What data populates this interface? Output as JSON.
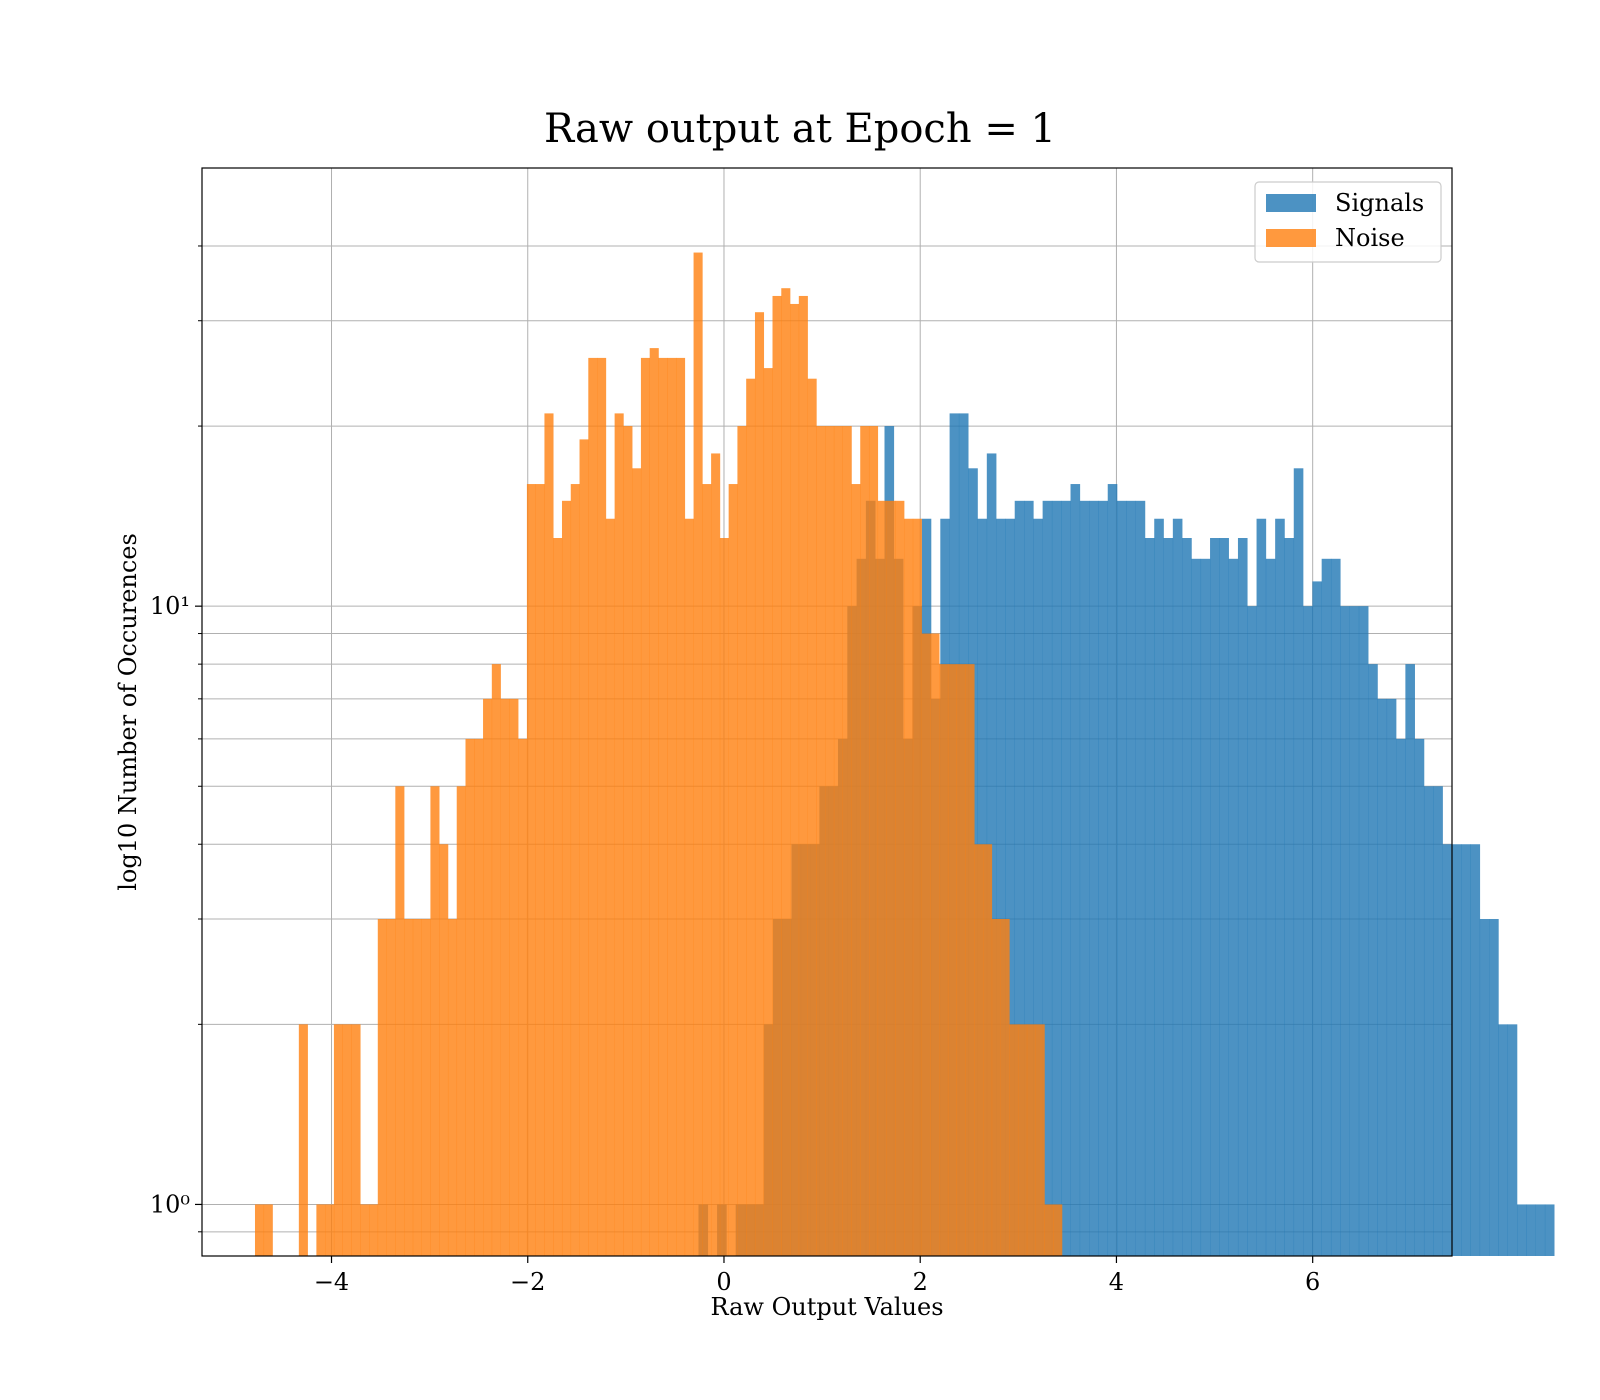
{
  "chart_data": {
    "type": "bar",
    "subtype": "histogram-overlay",
    "title": "Raw output at Epoch = 1",
    "xlabel": "Raw Output Values",
    "ylabel": "log10 Number of Occurences",
    "xlim": [
      -5.32,
      7.42
    ],
    "ylim": [
      0.82,
      54.0
    ],
    "yscale": "log",
    "grid": true,
    "legend_position": "top-right",
    "x_ticks": [
      {
        "value": -4,
        "label": "−4"
      },
      {
        "value": -2,
        "label": "−2"
      },
      {
        "value": 0,
        "label": "0"
      },
      {
        "value": 2,
        "label": "2"
      },
      {
        "value": 4,
        "label": "4"
      },
      {
        "value": 6,
        "label": "6"
      }
    ],
    "y_ticks": [
      {
        "value": 1,
        "label": "10⁰"
      },
      {
        "value": 10,
        "label": "10¹"
      }
    ],
    "y_minor_ticks": [
      0.9,
      2,
      3,
      4,
      5,
      6,
      7,
      8,
      9,
      20,
      30,
      40
    ],
    "series": [
      {
        "name": "Signals",
        "color": "#1f77b4",
        "opacity": 0.8,
        "x0": -0.26,
        "binwidth": 0.0948,
        "values": [
          1,
          0,
          1,
          0,
          1,
          1,
          1,
          2,
          3,
          3,
          4,
          4,
          4,
          5,
          5,
          6,
          10,
          12,
          15,
          12,
          20,
          12,
          6,
          10,
          14,
          7,
          14,
          21,
          21,
          17,
          14,
          18,
          14,
          14,
          15,
          15,
          14,
          15,
          15,
          15,
          16,
          15,
          15,
          15,
          16,
          15,
          15,
          15,
          13,
          14,
          13,
          14,
          13,
          12,
          12,
          13,
          13,
          12,
          13,
          10,
          14,
          12,
          14,
          13,
          17,
          10,
          11,
          12,
          12,
          10,
          10,
          10,
          8,
          7,
          7,
          6,
          8,
          6,
          5,
          5,
          4,
          4,
          4,
          4,
          3,
          3,
          2,
          2,
          1,
          1,
          1,
          1
        ]
      },
      {
        "name": "Noise",
        "color": "#ff7f0e",
        "opacity": 0.8,
        "x0": -4.78,
        "binwidth": 0.0894,
        "values": [
          1,
          1,
          0,
          0,
          0,
          2,
          0,
          1,
          1,
          2,
          2,
          2,
          1,
          1,
          3,
          3,
          5,
          3,
          3,
          3,
          5,
          4,
          3,
          5,
          6,
          6,
          7,
          8,
          7,
          7,
          6,
          16,
          16,
          21,
          13,
          15,
          16,
          19,
          26,
          26,
          14,
          21,
          20,
          17,
          26,
          27,
          26,
          26,
          26,
          14,
          39,
          16,
          18,
          13,
          16,
          20,
          24,
          31,
          25,
          33,
          34,
          32,
          33,
          24,
          20,
          20,
          20,
          20,
          16,
          20,
          20,
          15,
          15,
          15,
          14,
          14,
          9,
          9,
          8,
          8,
          8,
          8,
          4,
          4,
          3,
          3,
          2,
          2,
          2,
          2,
          1,
          1
        ]
      }
    ]
  }
}
